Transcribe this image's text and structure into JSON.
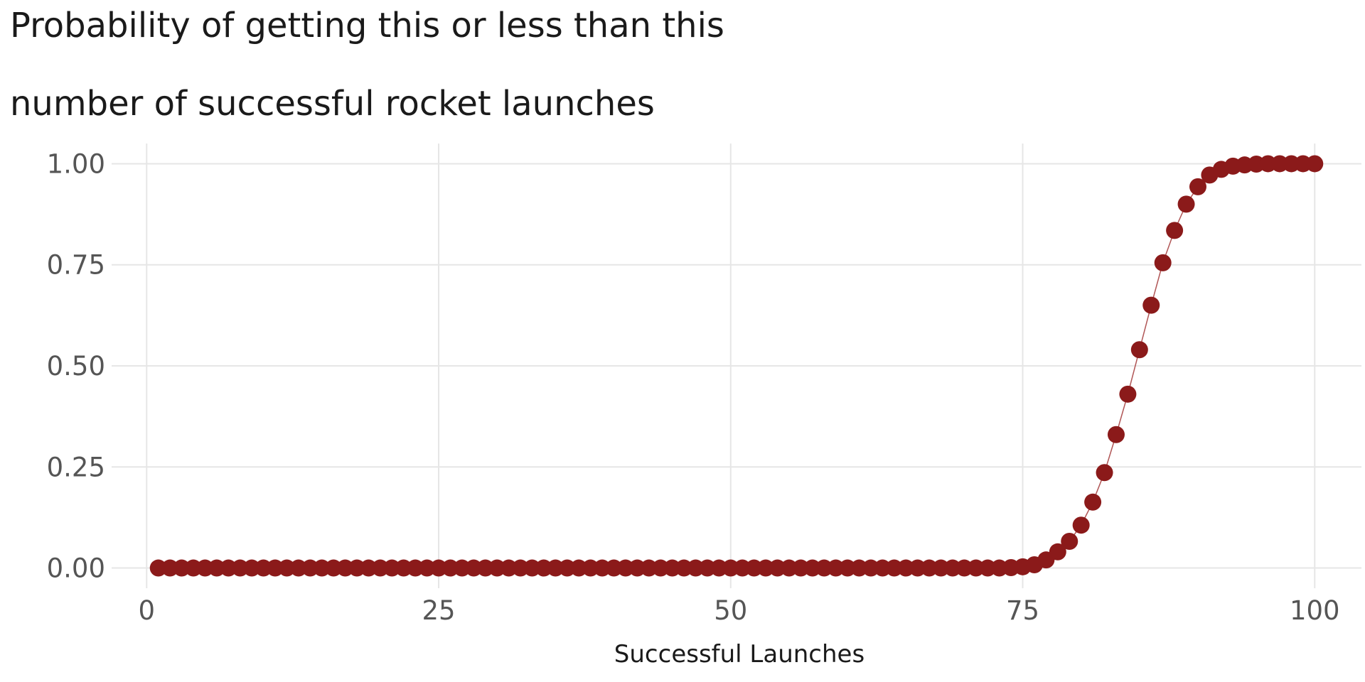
{
  "chart_data": {
    "type": "scatter",
    "title_lines": [
      "Probability of getting this or less than this",
      "number of successful rocket launches"
    ],
    "xlabel": "Successful Launches",
    "ylabel": "",
    "xlim": [
      -3,
      104
    ],
    "ylim": [
      -0.05,
      1.05
    ],
    "x_ticks": [
      0,
      25,
      50,
      75,
      100
    ],
    "x_tick_labels": [
      "0",
      "25",
      "50",
      "75",
      "100"
    ],
    "y_ticks": [
      0,
      0.25,
      0.5,
      0.75,
      1.0
    ],
    "y_tick_labels": [
      "0.00",
      "0.25",
      "0.50",
      "0.75",
      "1.00"
    ],
    "grid": true,
    "connect_points": true,
    "colors": {
      "point": "#8B1A1A",
      "line": "#B05555",
      "grid": "#e6e6e6"
    },
    "x": [
      1,
      2,
      3,
      4,
      5,
      6,
      7,
      8,
      9,
      10,
      11,
      12,
      13,
      14,
      15,
      16,
      17,
      18,
      19,
      20,
      21,
      22,
      23,
      24,
      25,
      26,
      27,
      28,
      29,
      30,
      31,
      32,
      33,
      34,
      35,
      36,
      37,
      38,
      39,
      40,
      41,
      42,
      43,
      44,
      45,
      46,
      47,
      48,
      49,
      50,
      51,
      52,
      53,
      54,
      55,
      56,
      57,
      58,
      59,
      60,
      61,
      62,
      63,
      64,
      65,
      66,
      67,
      68,
      69,
      70,
      71,
      72,
      73,
      74,
      75,
      76,
      77,
      78,
      79,
      80,
      81,
      82,
      83,
      84,
      85,
      86,
      87,
      88,
      89,
      90,
      91,
      92,
      93,
      94,
      95,
      96,
      97,
      98,
      99,
      100
    ],
    "y": [
      0,
      0,
      0,
      0,
      0,
      0,
      0,
      0,
      0,
      0,
      0,
      0,
      0,
      0,
      0,
      0,
      0,
      0,
      0,
      0,
      0,
      0,
      0,
      0,
      0,
      0,
      0,
      0,
      0,
      0,
      0,
      0,
      0,
      0,
      0,
      0,
      0,
      0,
      0,
      0,
      0,
      0,
      0,
      0,
      0,
      0,
      0,
      0,
      0,
      0,
      0,
      0,
      0,
      0,
      0,
      0,
      0,
      0,
      0,
      0,
      0,
      0,
      0,
      0,
      0,
      0,
      0,
      0,
      0,
      0,
      0,
      0,
      0,
      0.001,
      0.003,
      0.008,
      0.02,
      0.04,
      0.066,
      0.106,
      0.163,
      0.236,
      0.33,
      0.43,
      0.54,
      0.65,
      0.755,
      0.835,
      0.9,
      0.943,
      0.972,
      0.986,
      0.994,
      0.997,
      0.999,
      1,
      1,
      1,
      1,
      1
    ]
  }
}
